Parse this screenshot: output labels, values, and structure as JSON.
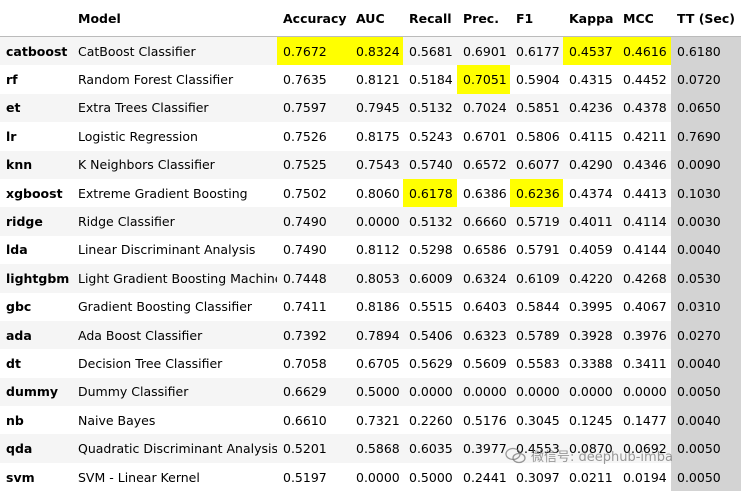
{
  "table": {
    "header": [
      "Model",
      "Accuracy",
      "AUC",
      "Recall",
      "Prec.",
      "F1",
      "Kappa",
      "MCC",
      "TT (Sec)"
    ],
    "rows": [
      [
        "catboost",
        "CatBoost Classifier",
        "0.7672",
        "0.8324",
        "0.5681",
        "0.6901",
        "0.6177",
        "0.4537",
        "0.4616",
        "0.6180"
      ],
      [
        "rf",
        "Random Forest Classifier",
        "0.7635",
        "0.8121",
        "0.5184",
        "0.7051",
        "0.5904",
        "0.4315",
        "0.4452",
        "0.0720"
      ],
      [
        "et",
        "Extra Trees Classifier",
        "0.7597",
        "0.7945",
        "0.5132",
        "0.7024",
        "0.5851",
        "0.4236",
        "0.4378",
        "0.0650"
      ],
      [
        "lr",
        "Logistic Regression",
        "0.7526",
        "0.8175",
        "0.5243",
        "0.6701",
        "0.5806",
        "0.4115",
        "0.4211",
        "0.7690"
      ],
      [
        "knn",
        "K Neighbors Classifier",
        "0.7525",
        "0.7543",
        "0.5740",
        "0.6572",
        "0.6077",
        "0.4290",
        "0.4346",
        "0.0090"
      ],
      [
        "xgboost",
        "Extreme Gradient Boosting",
        "0.7502",
        "0.8060",
        "0.6178",
        "0.6386",
        "0.6236",
        "0.4374",
        "0.4413",
        "0.1030"
      ],
      [
        "ridge",
        "Ridge Classifier",
        "0.7490",
        "0.0000",
        "0.5132",
        "0.6660",
        "0.5719",
        "0.4011",
        "0.4114",
        "0.0030"
      ],
      [
        "lda",
        "Linear Discriminant Analysis",
        "0.7490",
        "0.8112",
        "0.5298",
        "0.6586",
        "0.5791",
        "0.4059",
        "0.4144",
        "0.0040"
      ],
      [
        "lightgbm",
        "Light Gradient Boosting Machine",
        "0.7448",
        "0.8053",
        "0.6009",
        "0.6324",
        "0.6109",
        "0.4220",
        "0.4268",
        "0.0530"
      ],
      [
        "gbc",
        "Gradient Boosting Classifier",
        "0.7411",
        "0.8186",
        "0.5515",
        "0.6403",
        "0.5844",
        "0.3995",
        "0.4067",
        "0.0310"
      ],
      [
        "ada",
        "Ada Boost Classifier",
        "0.7392",
        "0.7894",
        "0.5406",
        "0.6323",
        "0.5789",
        "0.3928",
        "0.3976",
        "0.0270"
      ],
      [
        "dt",
        "Decision Tree Classifier",
        "0.7058",
        "0.6705",
        "0.5629",
        "0.5609",
        "0.5583",
        "0.3388",
        "0.3411",
        "0.0040"
      ],
      [
        "dummy",
        "Dummy Classifier",
        "0.6629",
        "0.5000",
        "0.0000",
        "0.0000",
        "0.0000",
        "0.0000",
        "0.0000",
        "0.0050"
      ],
      [
        "nb",
        "Naive Bayes",
        "0.6610",
        "0.7321",
        "0.2260",
        "0.5176",
        "0.3045",
        "0.1245",
        "0.1477",
        "0.0040"
      ],
      [
        "qda",
        "Quadratic Discriminant Analysis",
        "0.5201",
        "0.5868",
        "0.6035",
        "0.3977",
        "0.4553",
        "0.0870",
        "0.0692",
        "0.0050"
      ],
      [
        "svm",
        "SVM - Linear Kernel",
        "0.5197",
        "0.0000",
        "0.5000",
        "0.2441",
        "0.3097",
        "0.0211",
        "0.0194",
        "0.0050"
      ]
    ],
    "highlight_color": "#ffff00",
    "time_column_color": "#d3d3d3"
  },
  "watermark": "微信号: deephub-imba"
}
